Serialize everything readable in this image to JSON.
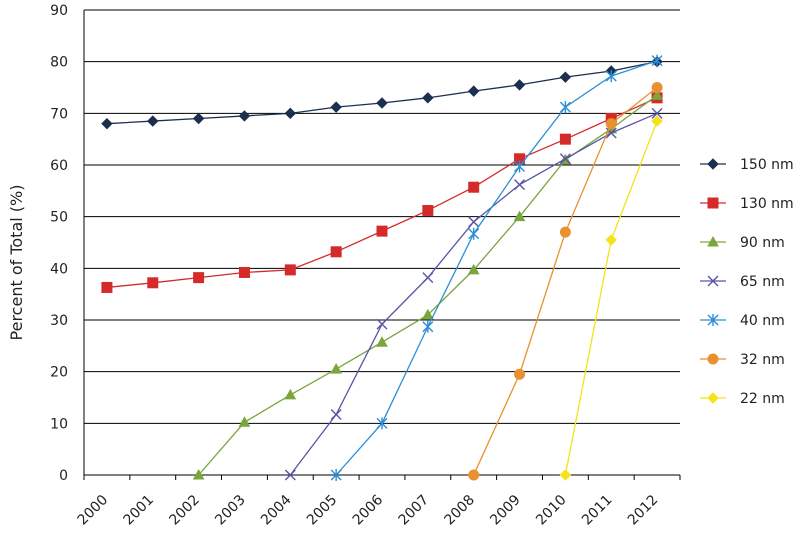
{
  "chart_data": {
    "type": "line",
    "title": "",
    "xlabel": "",
    "ylabel": "Percent of Total (%)",
    "ylim": [
      0,
      90
    ],
    "yticks": [
      0,
      10,
      20,
      30,
      40,
      50,
      60,
      70,
      80,
      90
    ],
    "grid": true,
    "legend_position": "right",
    "categories": [
      "2000",
      "2001",
      "2002",
      "2003",
      "2004",
      "2005",
      "2006",
      "2007",
      "2008",
      "2009",
      "2010",
      "2011",
      "2012"
    ],
    "series": [
      {
        "name": "150 nm",
        "color": "#1b2f4f",
        "marker": "diamond",
        "points": [
          [
            0.5,
            68
          ],
          [
            1.5,
            68.5
          ],
          [
            2.5,
            69
          ],
          [
            3.5,
            69.5
          ],
          [
            4.5,
            70
          ],
          [
            5.5,
            71.2
          ],
          [
            6.5,
            72
          ],
          [
            7.5,
            73
          ],
          [
            8.5,
            74.3
          ],
          [
            9.5,
            75.5
          ],
          [
            10.5,
            77
          ],
          [
            11.5,
            78.2
          ],
          [
            12.5,
            80
          ]
        ]
      },
      {
        "name": "130 nm",
        "color": "#d42a2a",
        "marker": "square",
        "points": [
          [
            0.5,
            36.3
          ],
          [
            1.5,
            37.2
          ],
          [
            2.5,
            38.2
          ],
          [
            3.5,
            39.2
          ],
          [
            4.5,
            39.7
          ],
          [
            5.5,
            43.2
          ],
          [
            6.5,
            47.2
          ],
          [
            7.5,
            51.2
          ],
          [
            8.5,
            55.7
          ],
          [
            9.5,
            61.2
          ],
          [
            10.5,
            65
          ],
          [
            11.5,
            69
          ],
          [
            12.5,
            73
          ]
        ]
      },
      {
        "name": "90 nm",
        "color": "#7aa63c",
        "marker": "triangle",
        "points": [
          [
            2.5,
            0
          ],
          [
            3.5,
            10.2
          ],
          [
            4.5,
            15.5
          ],
          [
            5.5,
            20.5
          ],
          [
            6.5,
            25.7
          ],
          [
            7.5,
            31
          ],
          [
            8.5,
            39.7
          ],
          [
            9.5,
            50
          ],
          [
            10.5,
            61
          ],
          [
            11.5,
            67
          ],
          [
            12.5,
            73.5
          ]
        ]
      },
      {
        "name": "65 nm",
        "color": "#5855a8",
        "marker": "x",
        "points": [
          [
            4.5,
            0
          ],
          [
            5.5,
            11.7
          ],
          [
            6.5,
            29.2
          ],
          [
            7.5,
            38.2
          ],
          [
            8.5,
            49
          ],
          [
            9.5,
            56.2
          ],
          [
            10.5,
            61.2
          ],
          [
            11.5,
            66.2
          ],
          [
            12.5,
            70
          ]
        ]
      },
      {
        "name": "40 nm",
        "color": "#2a8fd6",
        "marker": "asterisk",
        "points": [
          [
            5.5,
            0
          ],
          [
            6.5,
            10
          ],
          [
            7.5,
            28.7
          ],
          [
            8.5,
            46.7
          ],
          [
            9.5,
            59.7
          ],
          [
            10.5,
            71.2
          ],
          [
            11.5,
            77.2
          ],
          [
            12.5,
            80.2
          ]
        ]
      },
      {
        "name": "32 nm",
        "color": "#e8912e",
        "marker": "circle",
        "points": [
          [
            8.5,
            0
          ],
          [
            9.5,
            19.5
          ],
          [
            10.5,
            47
          ],
          [
            11.5,
            68
          ],
          [
            12.5,
            75
          ]
        ]
      },
      {
        "name": "22 nm",
        "color": "#f5e21a",
        "marker": "diamond",
        "points": [
          [
            10.5,
            0
          ],
          [
            11.5,
            45.5
          ],
          [
            12.5,
            68.5
          ]
        ]
      }
    ]
  }
}
